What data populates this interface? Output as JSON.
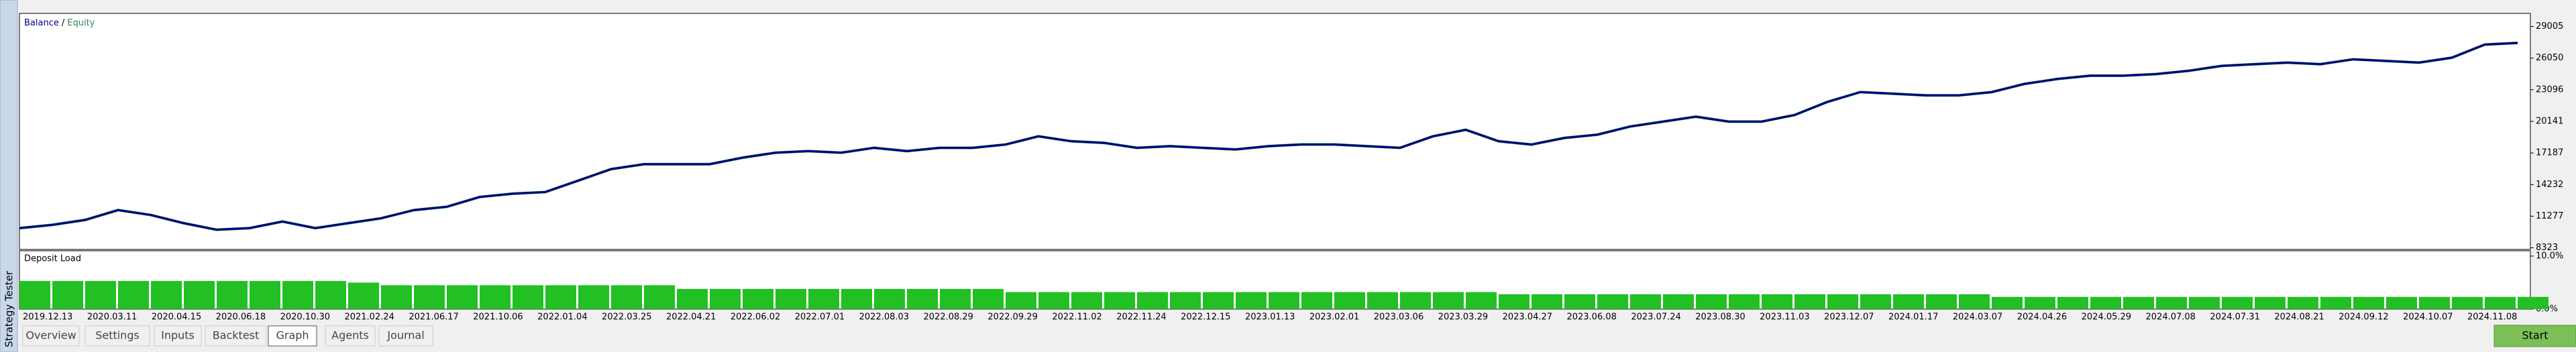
{
  "sidebar_title": "Strategy Tester",
  "chart_data": [
    {
      "type": "line",
      "legend_separator": "/",
      "series": [
        {
          "name": "Balance",
          "color": "#000080",
          "values": [
            10161,
            10468,
            10927,
            11847,
            11387,
            10621,
            10008,
            10161,
            10774,
            10161,
            10621,
            11081,
            11847,
            12153,
            13072,
            13379,
            13532,
            14604,
            15677,
            16136,
            16136,
            16136,
            16749,
            17209,
            17362,
            17209,
            17668,
            17362,
            17668,
            17668,
            17975,
            18741,
            18281,
            18128,
            17668,
            17821,
            17668,
            17515,
            17821,
            17975,
            17975,
            17821,
            17668,
            18741,
            19353,
            18281,
            17975,
            18587,
            18894,
            19660,
            20119,
            20579,
            20119,
            20119,
            20732,
            21958,
            22877,
            22724,
            22571,
            22571,
            22877,
            23643,
            24103,
            24409,
            24409,
            24562,
            24869,
            25328,
            25481,
            25635,
            25481,
            25941,
            25788,
            25635,
            26094,
            27320,
            27473
          ]
        },
        {
          "name": "Equity",
          "color": "#2e8b57",
          "values": [
            10161,
            10468,
            10927,
            11847,
            11387,
            10621,
            10008,
            10161,
            10774,
            10161,
            10621,
            11081,
            11847,
            12153,
            13072,
            13379,
            13532,
            14604,
            15677,
            16136,
            16136,
            16136,
            16749,
            17209,
            17362,
            17209,
            17668,
            17362,
            17668,
            17668,
            17975,
            18741,
            18281,
            18128,
            17668,
            17821,
            17668,
            17515,
            17821,
            17975,
            17975,
            17821,
            17668,
            18741,
            19353,
            18281,
            17975,
            18587,
            18894,
            19660,
            20119,
            20579,
            20119,
            20119,
            20732,
            21958,
            22877,
            22724,
            22571,
            22571,
            22877,
            23643,
            24103,
            24409,
            24409,
            24562,
            24869,
            25328,
            25481,
            25635,
            25481,
            25941,
            25788,
            25635,
            26094,
            27320,
            27473
          ]
        }
      ],
      "ylim": [
        8170,
        30231
      ],
      "yticks": [
        29005,
        26050,
        23096,
        20141,
        17187,
        14232,
        11277,
        8323
      ]
    },
    {
      "type": "bar",
      "title": "Deposit Load",
      "color": "#22c022",
      "values": [
        5.3,
        5.3,
        5.3,
        5.3,
        5.3,
        5.3,
        5.3,
        5.3,
        5.3,
        5.3,
        5.0,
        4.5,
        4.5,
        4.5,
        4.5,
        4.5,
        4.5,
        4.5,
        4.5,
        4.5,
        3.8,
        3.8,
        3.8,
        3.8,
        3.8,
        3.8,
        3.8,
        3.8,
        3.8,
        3.8,
        3.2,
        3.2,
        3.2,
        3.2,
        3.2,
        3.2,
        3.2,
        3.2,
        3.2,
        3.2,
        3.2,
        3.2,
        3.2,
        3.2,
        3.2,
        2.8,
        2.8,
        2.8,
        2.8,
        2.8,
        2.8,
        2.8,
        2.8,
        2.8,
        2.8,
        2.8,
        2.8,
        2.8,
        2.8,
        2.8,
        2.3,
        2.3,
        2.3,
        2.3,
        2.3,
        2.3,
        2.3,
        2.3,
        2.3,
        2.3,
        2.3,
        2.3,
        2.3,
        2.3,
        2.3,
        2.3,
        2.3
      ],
      "ylim": [
        0,
        11
      ],
      "yticks": [
        {
          "value": 10,
          "label": "10.0%"
        },
        {
          "value": 0,
          "label": "0.0%"
        }
      ]
    }
  ],
  "date_axis": [
    "2019.12.13",
    "2020.03.11",
    "2020.04.15",
    "2020.06.18",
    "2020.10.30",
    "2021.02.24",
    "2021.06.17",
    "2021.10.06",
    "2022.01.04",
    "2022.03.25",
    "2022.04.21",
    "2022.06.02",
    "2022.07.01",
    "2022.08.03",
    "2022.08.29",
    "2022.09.29",
    "2022.11.02",
    "2022.11.24",
    "2022.12.15",
    "2023.01.13",
    "2023.02.01",
    "2023.03.06",
    "2023.03.29",
    "2023.04.27",
    "2023.06.08",
    "2023.07.24",
    "2023.08.30",
    "2023.11.03",
    "2023.12.07",
    "2024.01.17",
    "2024.03.07",
    "2024.04.26",
    "2024.05.29",
    "2024.07.08",
    "2024.07.31",
    "2024.08.21",
    "2024.09.12",
    "2024.10.07",
    "2024.11.08"
  ],
  "tabs": [
    {
      "label": "Overview",
      "active": false
    },
    {
      "label": "Settings",
      "active": false
    },
    {
      "label": "Inputs",
      "active": false
    },
    {
      "label": "Backtest",
      "active": false
    },
    {
      "label": "Graph",
      "active": true
    },
    {
      "label": "Agents",
      "active": false
    },
    {
      "label": "Journal",
      "active": false
    }
  ],
  "start_button": "Start"
}
